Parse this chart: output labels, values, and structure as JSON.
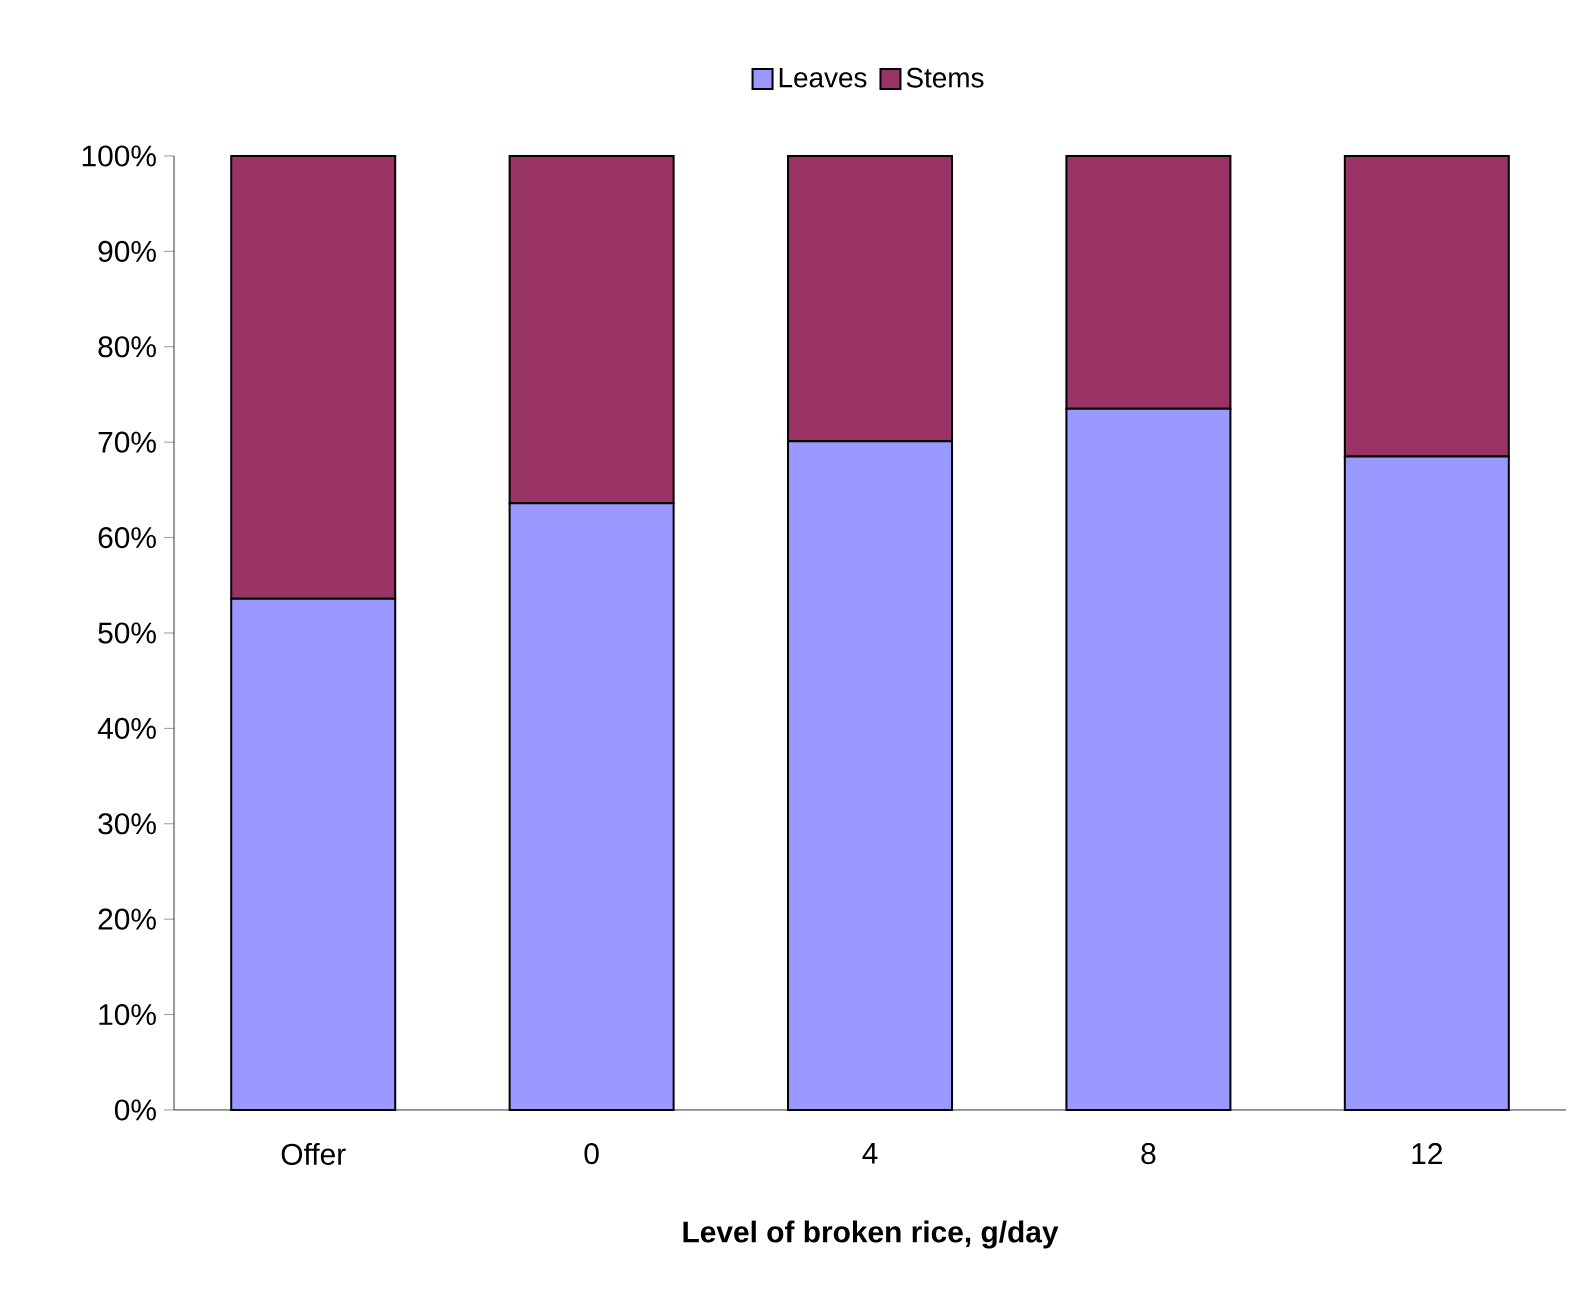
{
  "chart_data": {
    "type": "bar",
    "stacked": true,
    "xlabel": "Level of broken rice, g/day",
    "categories": [
      "Offer",
      "0",
      "4",
      "8",
      "12"
    ],
    "series": [
      {
        "name": "Leaves",
        "color": "#9999ff",
        "values": [
          53.6,
          63.6,
          70.1,
          73.5,
          68.5
        ]
      },
      {
        "name": "Stems",
        "color": "#993366",
        "values": [
          46.4,
          36.4,
          29.9,
          26.5,
          31.5
        ]
      }
    ],
    "ylim": [
      0,
      100
    ],
    "yticks": [
      {
        "value": 0,
        "label": "0%"
      },
      {
        "value": 10,
        "label": "10%"
      },
      {
        "value": 20,
        "label": "20%"
      },
      {
        "value": 30,
        "label": "30%"
      },
      {
        "value": 40,
        "label": "40%"
      },
      {
        "value": 50,
        "label": "50%"
      },
      {
        "value": 60,
        "label": "60%"
      },
      {
        "value": 70,
        "label": "70%"
      },
      {
        "value": 80,
        "label": "80%"
      },
      {
        "value": 90,
        "label": "90%"
      },
      {
        "value": 100,
        "label": "100%"
      }
    ],
    "legend": "top",
    "grid": false
  }
}
